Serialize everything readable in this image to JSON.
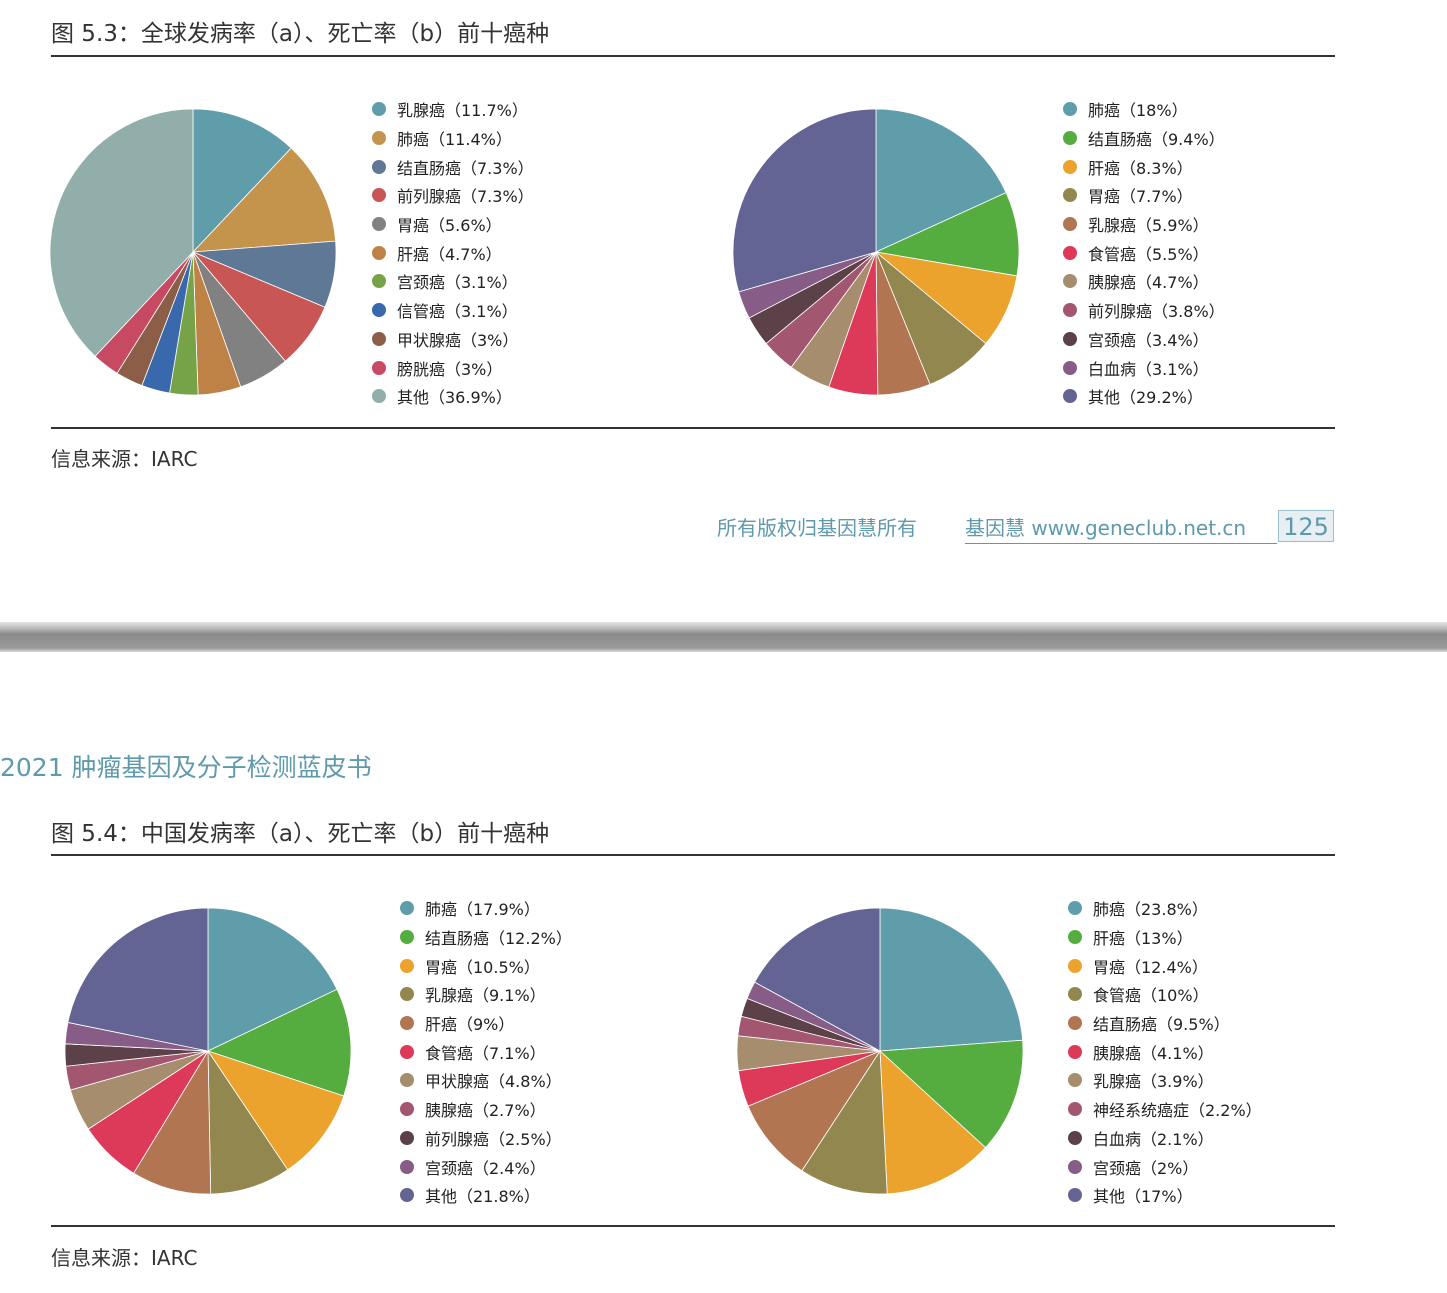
{
  "colors": {
    "accent": "#5e9aab",
    "rule": "#333333"
  },
  "figures": [
    {
      "title": "图 5.3：全球发病率（a）、死亡率（b）前十癌种",
      "source": "信息来源：IARC"
    },
    {
      "title": "图 5.4：中国发病率（a）、死亡率（b）前十癌种",
      "source": "信息来源：IARC"
    }
  ],
  "footer": {
    "rights": "所有版权归基因慧所有",
    "site": "基因慧 www.geneclub.net.cn",
    "page_number": "125"
  },
  "header": {
    "book_title": "2021 肿瘤基因及分子检测蓝皮书"
  },
  "chart_data": [
    {
      "type": "pie",
      "labels": [
        "乳腺癌（11.7%）",
        "肺癌（11.4%）",
        "结直肠癌（7.3%）",
        "前列腺癌（7.3%）",
        "胃癌（5.6%）",
        "肝癌（4.7%）",
        "宫颈癌（3.1%）",
        "信管癌（3.1%）",
        "甲状腺癌（3%）",
        "膀胱癌（3%）",
        "其他（36.9%）"
      ],
      "values": [
        11.7,
        11.4,
        7.3,
        7.3,
        5.6,
        4.7,
        3.1,
        3.1,
        3,
        3,
        36.9
      ],
      "colors": [
        "#5f9dab",
        "#c4944c",
        "#5e7896",
        "#c85655",
        "#818181",
        "#bf8246",
        "#76a347",
        "#3a68ac",
        "#8c5e48",
        "#c74a62",
        "#91aeaa"
      ]
    },
    {
      "type": "pie",
      "labels": [
        "肺癌（18%）",
        "结直肠癌（9.4%）",
        "肝癌（8.3%）",
        "胃癌（7.7%）",
        "乳腺癌（5.9%）",
        "食管癌（5.5%）",
        "胰腺癌（4.7%）",
        "前列腺癌（3.8%）",
        "宫颈癌（3.4%）",
        "白血病（3.1%）",
        "其他（29.2%）"
      ],
      "values": [
        18,
        9.4,
        8.3,
        7.7,
        5.9,
        5.5,
        4.7,
        3.8,
        3.4,
        3.1,
        29.2
      ],
      "colors": [
        "#5f9dab",
        "#54ad3e",
        "#eba32d",
        "#92874f",
        "#b17552",
        "#dc3a58",
        "#a68d6e",
        "#a2566f",
        "#5d4149",
        "#875c86",
        "#646494"
      ]
    },
    {
      "type": "pie",
      "labels": [
        "肺癌（17.9%）",
        "结直肠癌（12.2%）",
        "胃癌（10.5%）",
        "乳腺癌（9.1%）",
        "肝癌（9%）",
        "食管癌（7.1%）",
        "甲状腺癌（4.8%）",
        "胰腺癌（2.7%）",
        "前列腺癌（2.5%）",
        "宫颈癌（2.4%）",
        "其他（21.8%）"
      ],
      "values": [
        17.9,
        12.2,
        10.5,
        9.1,
        9,
        7.1,
        4.8,
        2.7,
        2.5,
        2.4,
        21.8
      ],
      "colors": [
        "#5f9dab",
        "#54ad3e",
        "#eba32d",
        "#92874f",
        "#b17552",
        "#dc3a58",
        "#a68d6e",
        "#a2566f",
        "#5d4149",
        "#875c86",
        "#646494"
      ]
    },
    {
      "type": "pie",
      "labels": [
        "肺癌（23.8%）",
        "肝癌（13%）",
        "胃癌（12.4%）",
        "食管癌（10%）",
        "结直肠癌（9.5%）",
        "胰腺癌（4.1%）",
        "乳腺癌（3.9%）",
        "神经系统癌症（2.2%）",
        "白血病（2.1%）",
        "宫颈癌（2%）",
        "其他（17%）"
      ],
      "values": [
        23.8,
        13,
        12.4,
        10,
        9.5,
        4.1,
        3.9,
        2.2,
        2.1,
        2,
        17
      ],
      "colors": [
        "#5f9dab",
        "#54ad3e",
        "#eba32d",
        "#92874f",
        "#b17552",
        "#dc3a58",
        "#a68d6e",
        "#a2566f",
        "#5d4149",
        "#875c86",
        "#646494"
      ]
    }
  ]
}
